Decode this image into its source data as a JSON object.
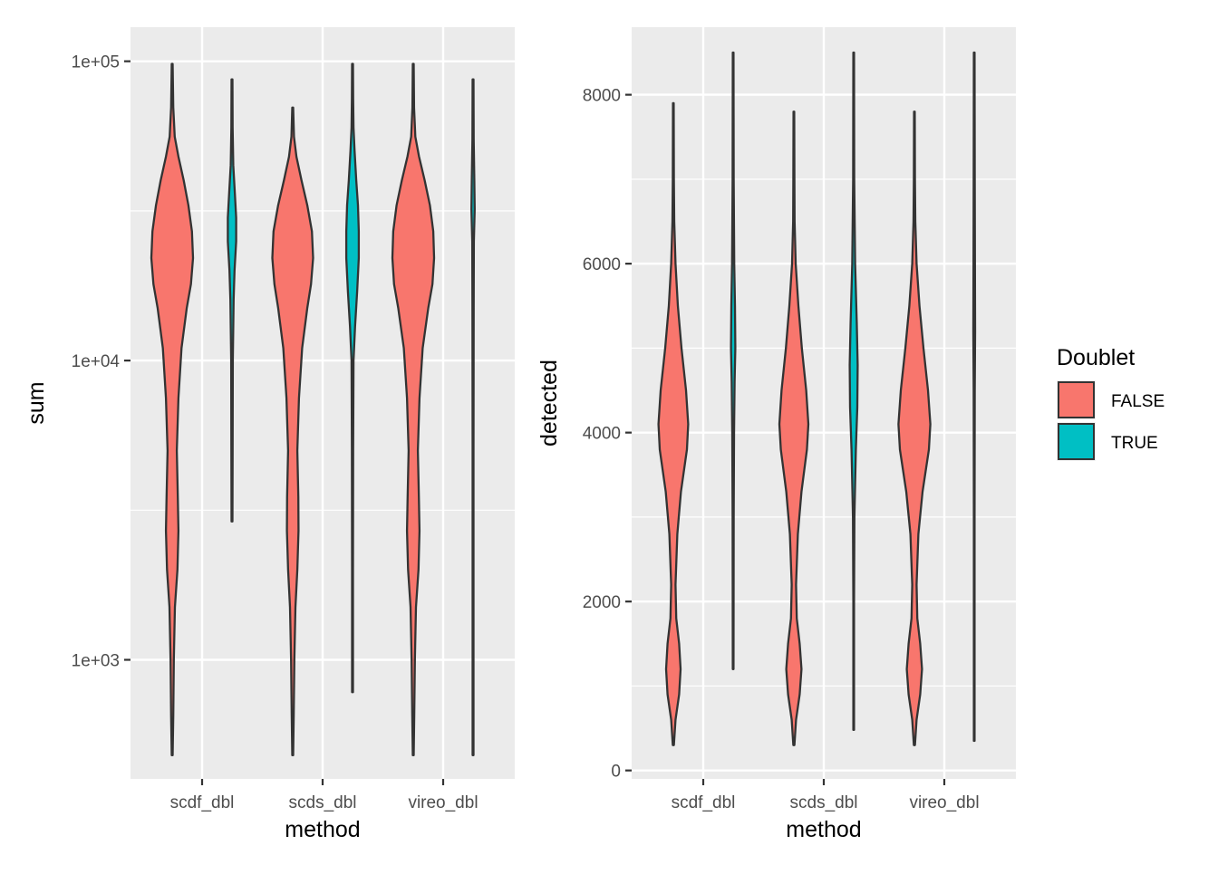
{
  "colors": {
    "panel_bg": "#EBEBEB",
    "grid_major": "#FFFFFF",
    "outline": "#333333",
    "axis_text": "#4D4D4D",
    "title_text": "#000000",
    "false_fill": "#F8766D",
    "true_fill": "#00BFC4"
  },
  "legend": {
    "title": "Doublet",
    "placement": "right",
    "entries": [
      {
        "label": "FALSE",
        "color": "#F8766D"
      },
      {
        "label": "TRUE",
        "color": "#00BFC4"
      }
    ]
  },
  "chart_data": [
    {
      "type": "violin",
      "xlabel": "method",
      "ylabel": "sum",
      "scale": "log10",
      "ylim": [
        400,
        130000
      ],
      "yticks": [
        1000,
        10000,
        100000
      ],
      "ytick_labels": [
        "1e+03",
        "1e+04",
        "1e+05"
      ],
      "grid": true,
      "categories": [
        "scdf_dbl",
        "scds_dbl",
        "vireo_dbl"
      ],
      "series": [
        {
          "name": "FALSE",
          "violins": [
            {
              "min": 480,
              "max": 98000,
              "profile": [
                [
                  480,
                  0.02
                ],
                [
                  650,
                  0.05
                ],
                [
                  1000,
                  0.08
                ],
                [
                  1500,
                  0.13
                ],
                [
                  2000,
                  0.25
                ],
                [
                  2700,
                  0.3
                ],
                [
                  3500,
                  0.27
                ],
                [
                  5000,
                  0.22
                ],
                [
                  7500,
                  0.3
                ],
                [
                  11000,
                  0.45
                ],
                [
                  15000,
                  0.7
                ],
                [
                  18000,
                  0.9
                ],
                [
                  22000,
                  1.0
                ],
                [
                  27000,
                  0.95
                ],
                [
                  33000,
                  0.78
                ],
                [
                  40000,
                  0.55
                ],
                [
                  48000,
                  0.3
                ],
                [
                  56000,
                  0.12
                ],
                [
                  70000,
                  0.05
                ],
                [
                  98000,
                  0.02
                ]
              ]
            },
            {
              "min": 480,
              "max": 70000,
              "profile": [
                [
                  480,
                  0.02
                ],
                [
                  650,
                  0.05
                ],
                [
                  1000,
                  0.08
                ],
                [
                  1500,
                  0.13
                ],
                [
                  2000,
                  0.22
                ],
                [
                  2700,
                  0.28
                ],
                [
                  3500,
                  0.27
                ],
                [
                  5000,
                  0.22
                ],
                [
                  7500,
                  0.3
                ],
                [
                  11000,
                  0.45
                ],
                [
                  15000,
                  0.7
                ],
                [
                  18000,
                  0.88
                ],
                [
                  22000,
                  0.98
                ],
                [
                  27000,
                  0.92
                ],
                [
                  33000,
                  0.7
                ],
                [
                  40000,
                  0.42
                ],
                [
                  48000,
                  0.18
                ],
                [
                  56000,
                  0.06
                ],
                [
                  70000,
                  0.02
                ]
              ]
            },
            {
              "min": 480,
              "max": 98000,
              "profile": [
                [
                  480,
                  0.02
                ],
                [
                  650,
                  0.05
                ],
                [
                  1000,
                  0.08
                ],
                [
                  1500,
                  0.13
                ],
                [
                  2000,
                  0.25
                ],
                [
                  2700,
                  0.3
                ],
                [
                  3500,
                  0.27
                ],
                [
                  5000,
                  0.22
                ],
                [
                  7500,
                  0.3
                ],
                [
                  11000,
                  0.45
                ],
                [
                  15000,
                  0.72
                ],
                [
                  18000,
                  0.92
                ],
                [
                  22000,
                  1.0
                ],
                [
                  27000,
                  0.96
                ],
                [
                  33000,
                  0.8
                ],
                [
                  40000,
                  0.55
                ],
                [
                  48000,
                  0.28
                ],
                [
                  56000,
                  0.1
                ],
                [
                  70000,
                  0.04
                ],
                [
                  98000,
                  0.02
                ]
              ]
            }
          ]
        },
        {
          "name": "TRUE",
          "violins": [
            {
              "min": 2900,
              "max": 87000,
              "profile": [
                [
                  2900,
                  0.02
                ],
                [
                  5000,
                  0.03
                ],
                [
                  10000,
                  0.04
                ],
                [
                  16000,
                  0.08
                ],
                [
                  20000,
                  0.12
                ],
                [
                  25000,
                  0.2
                ],
                [
                  30000,
                  0.2
                ],
                [
                  36000,
                  0.14
                ],
                [
                  45000,
                  0.06
                ],
                [
                  60000,
                  0.03
                ],
                [
                  87000,
                  0.02
                ]
              ]
            },
            {
              "min": 780,
              "max": 98000,
              "profile": [
                [
                  780,
                  0.02
                ],
                [
                  2000,
                  0.02
                ],
                [
                  5000,
                  0.03
                ],
                [
                  10000,
                  0.05
                ],
                [
                  13000,
                  0.12
                ],
                [
                  17000,
                  0.22
                ],
                [
                  22000,
                  0.3
                ],
                [
                  27000,
                  0.3
                ],
                [
                  33000,
                  0.26
                ],
                [
                  40000,
                  0.18
                ],
                [
                  50000,
                  0.1
                ],
                [
                  60000,
                  0.05
                ],
                [
                  75000,
                  0.03
                ],
                [
                  98000,
                  0.02
                ]
              ]
            },
            {
              "min": 480,
              "max": 87000,
              "profile": [
                [
                  480,
                  0.02
                ],
                [
                  5000,
                  0.02
                ],
                [
                  15000,
                  0.03
                ],
                [
                  25000,
                  0.04
                ],
                [
                  32000,
                  0.08
                ],
                [
                  40000,
                  0.06
                ],
                [
                  55000,
                  0.03
                ],
                [
                  87000,
                  0.02
                ]
              ]
            }
          ]
        }
      ]
    },
    {
      "type": "violin",
      "xlabel": "method",
      "ylabel": "detected",
      "scale": "linear",
      "ylim": [
        -100,
        8800
      ],
      "yticks": [
        0,
        2000,
        4000,
        6000,
        8000
      ],
      "ytick_labels": [
        "0",
        "2000",
        "4000",
        "6000",
        "8000"
      ],
      "grid": true,
      "categories": [
        "scdf_dbl",
        "scds_dbl",
        "vireo_dbl"
      ],
      "series": [
        {
          "name": "FALSE",
          "violins": [
            {
              "min": 300,
              "max": 7900,
              "profile": [
                [
                  300,
                  0.03
                ],
                [
                  600,
                  0.12
                ],
                [
                  900,
                  0.32
                ],
                [
                  1200,
                  0.4
                ],
                [
                  1500,
                  0.32
                ],
                [
                  1800,
                  0.16
                ],
                [
                  2200,
                  0.12
                ],
                [
                  2800,
                  0.22
                ],
                [
                  3300,
                  0.42
                ],
                [
                  3800,
                  0.75
                ],
                [
                  4100,
                  0.82
                ],
                [
                  4500,
                  0.7
                ],
                [
                  5000,
                  0.45
                ],
                [
                  5500,
                  0.25
                ],
                [
                  6000,
                  0.12
                ],
                [
                  6500,
                  0.05
                ],
                [
                  7000,
                  0.03
                ],
                [
                  7900,
                  0.02
                ]
              ]
            },
            {
              "min": 300,
              "max": 7800,
              "profile": [
                [
                  300,
                  0.03
                ],
                [
                  600,
                  0.12
                ],
                [
                  900,
                  0.32
                ],
                [
                  1200,
                  0.42
                ],
                [
                  1500,
                  0.32
                ],
                [
                  1800,
                  0.16
                ],
                [
                  2200,
                  0.12
                ],
                [
                  2800,
                  0.22
                ],
                [
                  3300,
                  0.42
                ],
                [
                  3800,
                  0.72
                ],
                [
                  4100,
                  0.8
                ],
                [
                  4500,
                  0.68
                ],
                [
                  5000,
                  0.44
                ],
                [
                  5500,
                  0.25
                ],
                [
                  6000,
                  0.1
                ],
                [
                  6500,
                  0.04
                ],
                [
                  7000,
                  0.03
                ],
                [
                  7800,
                  0.02
                ]
              ]
            },
            {
              "min": 300,
              "max": 7800,
              "profile": [
                [
                  300,
                  0.03
                ],
                [
                  600,
                  0.12
                ],
                [
                  900,
                  0.32
                ],
                [
                  1200,
                  0.42
                ],
                [
                  1500,
                  0.32
                ],
                [
                  1800,
                  0.16
                ],
                [
                  2200,
                  0.12
                ],
                [
                  2800,
                  0.22
                ],
                [
                  3300,
                  0.45
                ],
                [
                  3800,
                  0.8
                ],
                [
                  4100,
                  0.88
                ],
                [
                  4500,
                  0.75
                ],
                [
                  5000,
                  0.5
                ],
                [
                  5500,
                  0.28
                ],
                [
                  6000,
                  0.12
                ],
                [
                  6500,
                  0.05
                ],
                [
                  7000,
                  0.03
                ],
                [
                  7800,
                  0.02
                ]
              ]
            }
          ]
        },
        {
          "name": "TRUE",
          "violins": [
            {
              "min": 1200,
              "max": 8500,
              "profile": [
                [
                  1200,
                  0.02
                ],
                [
                  3000,
                  0.03
                ],
                [
                  4000,
                  0.05
                ],
                [
                  4600,
                  0.08
                ],
                [
                  5000,
                  0.12
                ],
                [
                  5500,
                  0.1
                ],
                [
                  6000,
                  0.06
                ],
                [
                  7000,
                  0.03
                ],
                [
                  8500,
                  0.02
                ]
              ]
            },
            {
              "min": 480,
              "max": 8500,
              "profile": [
                [
                  480,
                  0.02
                ],
                [
                  2000,
                  0.02
                ],
                [
                  3000,
                  0.04
                ],
                [
                  3800,
                  0.12
                ],
                [
                  4300,
                  0.2
                ],
                [
                  4800,
                  0.22
                ],
                [
                  5300,
                  0.17
                ],
                [
                  6000,
                  0.08
                ],
                [
                  7000,
                  0.03
                ],
                [
                  8500,
                  0.02
                ]
              ]
            },
            {
              "min": 350,
              "max": 8500,
              "profile": [
                [
                  350,
                  0.02
                ],
                [
                  3000,
                  0.02
                ],
                [
                  4500,
                  0.03
                ],
                [
                  5200,
                  0.05
                ],
                [
                  6000,
                  0.04
                ],
                [
                  7000,
                  0.03
                ],
                [
                  8500,
                  0.02
                ]
              ]
            }
          ]
        }
      ]
    }
  ]
}
